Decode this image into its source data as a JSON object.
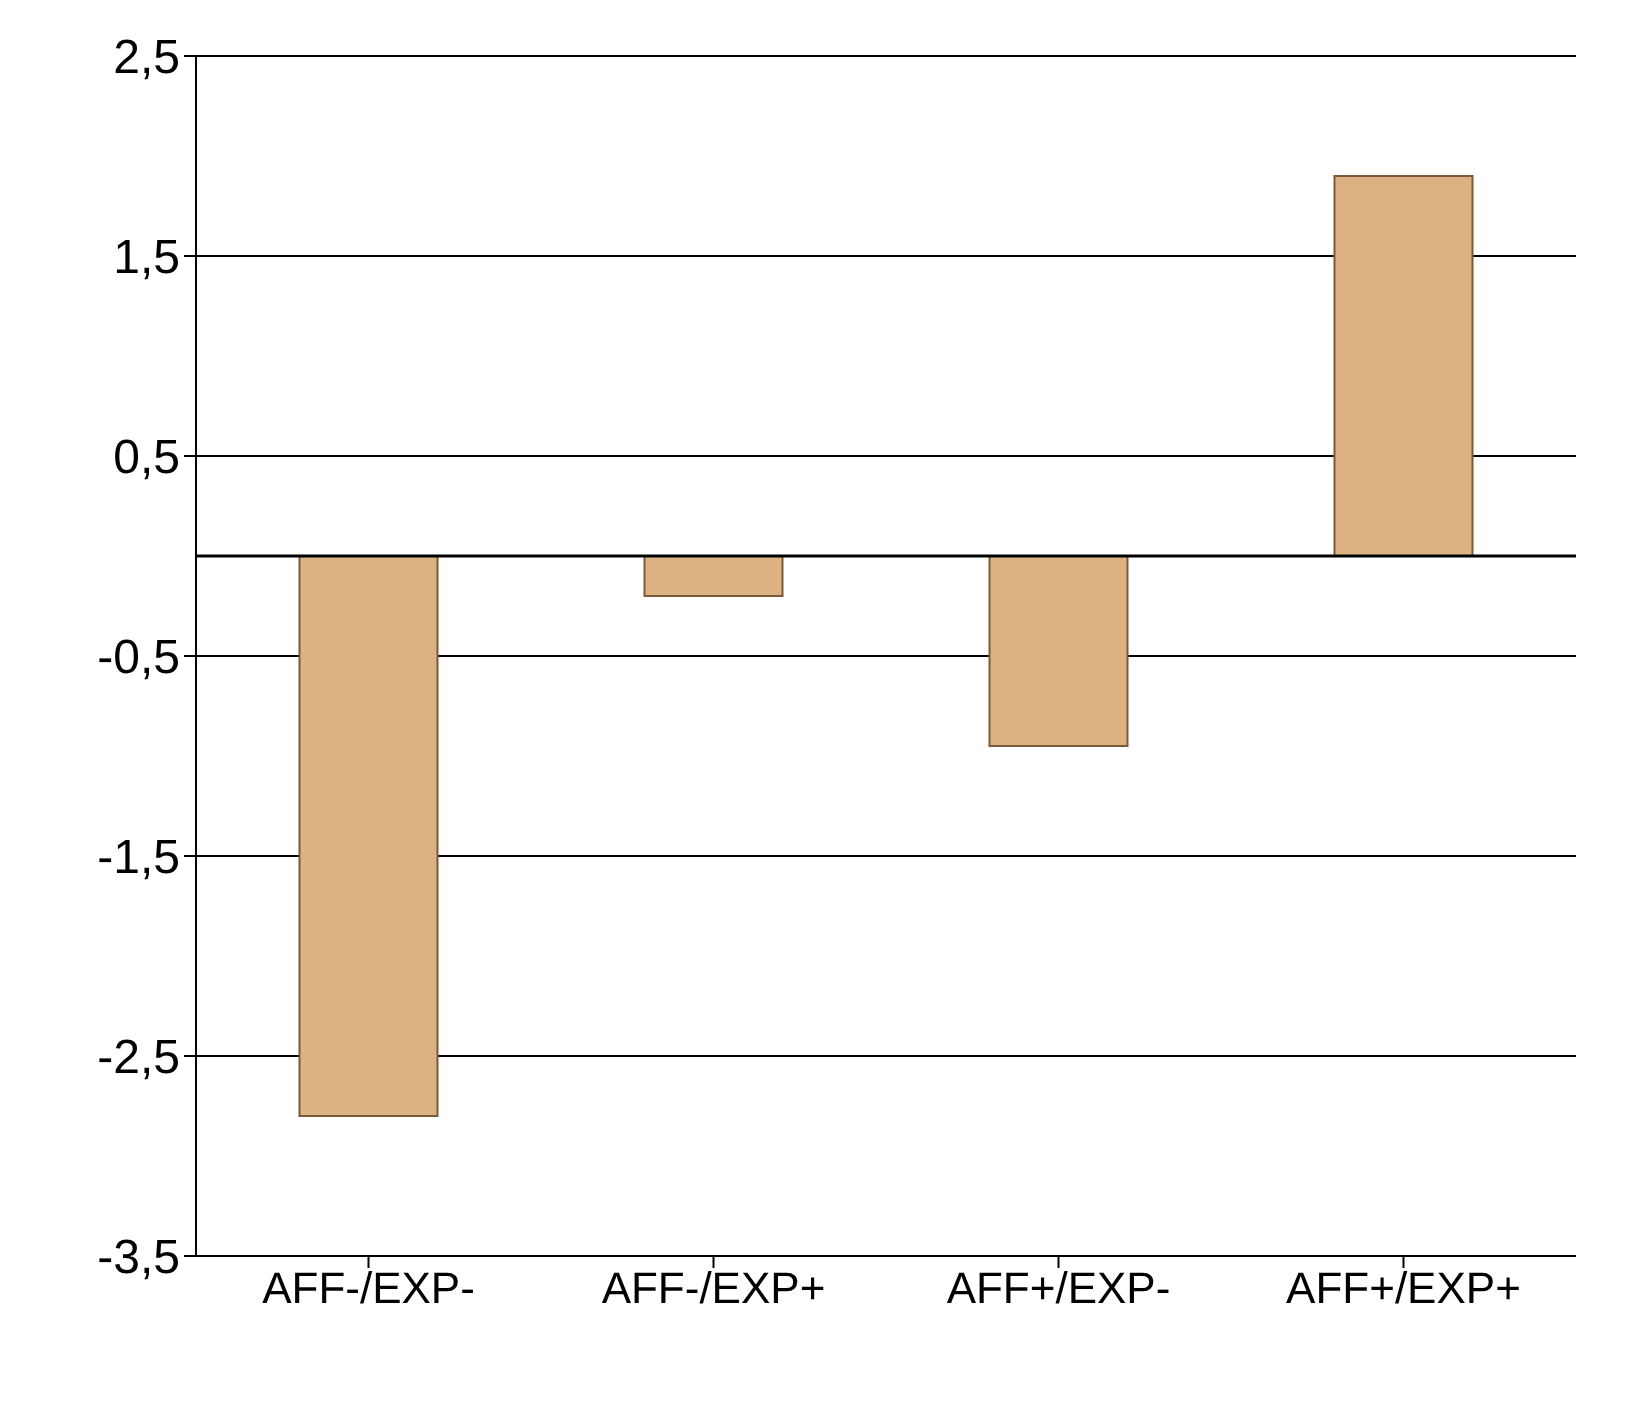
{
  "chart_data": {
    "type": "bar",
    "categories": [
      "AFF-/EXP-",
      "AFF-/EXP+",
      "AFF+/EXP-",
      "AFF+/EXP+"
    ],
    "values": [
      -2.8,
      -0.2,
      -0.95,
      1.9
    ],
    "color": "#dcb283",
    "ylim": [
      -3.5,
      2.5
    ],
    "yticks": [
      {
        "value": -3.5,
        "label": "-3,5"
      },
      {
        "value": -2.5,
        "label": "-2,5"
      },
      {
        "value": -1.5,
        "label": "-1,5"
      },
      {
        "value": -0.5,
        "label": "-0,5"
      },
      {
        "value": 0.5,
        "label": "0,5"
      },
      {
        "value": 1.5,
        "label": "1,5"
      },
      {
        "value": 2.5,
        "label": "2,5"
      }
    ],
    "grid": "y"
  }
}
